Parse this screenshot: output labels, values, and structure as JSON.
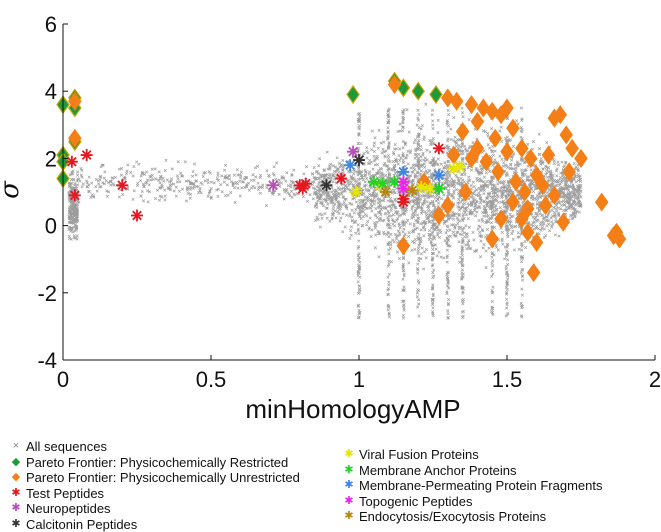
{
  "chart_data": {
    "type": "scatter",
    "title": "",
    "xlabel": "minHomologyAMP",
    "ylabel": "σ",
    "xlim": [
      0,
      2
    ],
    "ylim": [
      -4,
      6
    ],
    "xticks": [
      "0",
      "0.5",
      "1",
      "1.5",
      "2"
    ],
    "yticks": [
      "-4",
      "-2",
      "0",
      "2",
      "4",
      "6"
    ],
    "grid": false,
    "legend_placement": "bottom",
    "background_cloud": {
      "name": "All sequences",
      "color": "#8c8c8c",
      "marker": "x",
      "description_ranges": [
        {
          "x": [
            0.0,
            0.05
          ],
          "y": [
            -1.0,
            3.5
          ]
        },
        {
          "x": [
            0.05,
            0.9
          ],
          "y": [
            0.3,
            2.2
          ]
        },
        {
          "x": [
            0.85,
            1.75
          ],
          "y": [
            -3.8,
            4.3
          ]
        }
      ]
    },
    "series": [
      {
        "name": "Pareto Frontier: Physicochemically Restricted",
        "color": "#1f9a3a",
        "marker": "diamond",
        "points": [
          [
            0.0,
            3.6
          ],
          [
            0.0,
            2.1
          ],
          [
            0.0,
            1.9
          ],
          [
            0.0,
            1.4
          ],
          [
            0.04,
            3.8
          ],
          [
            0.04,
            3.5
          ],
          [
            0.04,
            2.5
          ],
          [
            0.98,
            3.9
          ],
          [
            1.12,
            4.3
          ],
          [
            1.15,
            4.1
          ],
          [
            1.2,
            4.0
          ],
          [
            1.26,
            3.9
          ]
        ]
      },
      {
        "name": "Pareto Frontier: Physicochemically Unrestricted",
        "color": "#f57f17",
        "marker": "diamond",
        "points": [
          [
            0.04,
            3.7
          ],
          [
            0.04,
            2.6
          ],
          [
            1.12,
            4.2
          ],
          [
            1.3,
            3.8
          ],
          [
            1.33,
            3.7
          ],
          [
            1.38,
            3.6
          ],
          [
            1.42,
            3.5
          ],
          [
            1.45,
            3.4
          ],
          [
            1.48,
            3.3
          ],
          [
            1.5,
            3.5
          ],
          [
            1.4,
            3.1
          ],
          [
            1.35,
            2.8
          ],
          [
            1.52,
            2.9
          ],
          [
            1.46,
            2.6
          ],
          [
            1.4,
            2.3
          ],
          [
            1.32,
            2.1
          ],
          [
            1.38,
            2.0
          ],
          [
            1.43,
            1.9
          ],
          [
            1.5,
            2.2
          ],
          [
            1.55,
            2.3
          ],
          [
            1.58,
            2.0
          ],
          [
            1.47,
            1.6
          ],
          [
            1.53,
            1.3
          ],
          [
            1.56,
            1.0
          ],
          [
            1.6,
            1.5
          ],
          [
            1.62,
            1.2
          ],
          [
            1.64,
            2.1
          ],
          [
            1.66,
            3.2
          ],
          [
            1.68,
            3.3
          ],
          [
            1.7,
            2.7
          ],
          [
            1.72,
            2.3
          ],
          [
            1.57,
            0.5
          ],
          [
            1.52,
            0.7
          ],
          [
            1.48,
            0.2
          ],
          [
            1.45,
            -0.4
          ],
          [
            1.57,
            -0.2
          ],
          [
            1.55,
            0.2
          ],
          [
            1.6,
            -0.5
          ],
          [
            1.59,
            -1.4
          ],
          [
            1.63,
            0.6
          ],
          [
            1.66,
            0.9
          ],
          [
            1.69,
            0.1
          ],
          [
            1.71,
            1.6
          ],
          [
            1.75,
            2.0
          ],
          [
            1.82,
            0.7
          ],
          [
            1.86,
            -0.3
          ],
          [
            1.87,
            -0.2
          ],
          [
            1.88,
            -0.4
          ],
          [
            1.15,
            -0.6
          ],
          [
            1.27,
            0.3
          ],
          [
            1.3,
            0.6
          ],
          [
            1.22,
            1.3
          ],
          [
            1.36,
            1.0
          ]
        ]
      },
      {
        "name": "Test Peptides",
        "color": "#e8171f",
        "marker": "asterisk",
        "points": [
          [
            0.03,
            1.9
          ],
          [
            0.04,
            0.9
          ],
          [
            0.08,
            2.1
          ],
          [
            0.2,
            1.2
          ],
          [
            0.25,
            0.3
          ],
          [
            0.8,
            1.2
          ],
          [
            0.81,
            1.1
          ],
          [
            0.82,
            1.25
          ],
          [
            0.94,
            1.4
          ],
          [
            1.15,
            0.8
          ],
          [
            1.15,
            0.7
          ],
          [
            1.27,
            2.3
          ]
        ]
      },
      {
        "name": "Neuropeptides",
        "color": "#b84fb8",
        "marker": "asterisk",
        "points": [
          [
            0.71,
            1.2
          ],
          [
            0.98,
            2.2
          ]
        ]
      },
      {
        "name": "Calcitonin Peptides",
        "color": "#333333",
        "marker": "asterisk",
        "points": [
          [
            0.89,
            1.2
          ],
          [
            1.0,
            1.95
          ],
          [
            1.27,
            1.1
          ]
        ]
      },
      {
        "name": "Viral Fusion Proteins",
        "color": "#e6e600",
        "marker": "asterisk",
        "points": [
          [
            0.99,
            1.0
          ],
          [
            1.07,
            1.2
          ],
          [
            1.21,
            1.15
          ],
          [
            1.24,
            1.1
          ],
          [
            1.32,
            1.7
          ],
          [
            1.34,
            1.75
          ]
        ]
      },
      {
        "name": "Membrane Anchor Proteins",
        "color": "#22d422",
        "marker": "asterisk",
        "points": [
          [
            1.05,
            1.3
          ],
          [
            1.08,
            1.25
          ],
          [
            1.12,
            1.3
          ],
          [
            1.27,
            1.1
          ]
        ]
      },
      {
        "name": "Membrane-Permeating Protein Fragments",
        "color": "#3c86e6",
        "marker": "asterisk",
        "points": [
          [
            0.97,
            1.8
          ],
          [
            1.15,
            1.6
          ],
          [
            1.27,
            1.5
          ]
        ]
      },
      {
        "name": "Topogenic Peptides",
        "color": "#ee22ee",
        "marker": "asterisk",
        "points": [
          [
            1.15,
            1.3
          ],
          [
            1.15,
            1.1
          ]
        ]
      },
      {
        "name": "Endocytosis/Exocytosis Proteins",
        "color": "#b8860b",
        "marker": "asterisk",
        "points": [
          [
            1.09,
            1.0
          ],
          [
            1.18,
            1.05
          ]
        ]
      }
    ]
  },
  "legend": {
    "left": [
      {
        "label": "All sequences",
        "color": "#8c8c8c",
        "symbol": "×"
      },
      {
        "label": "Pareto Frontier: Physicochemically Restricted",
        "color": "#1f9a3a",
        "symbol": "◆"
      },
      {
        "label": "Pareto Frontier: Physicochemically Unrestricted",
        "color": "#f57f17",
        "symbol": "◆"
      },
      {
        "label": "Test Peptides",
        "color": "#e8171f",
        "symbol": "✱"
      },
      {
        "label": "Neuropeptides",
        "color": "#b84fb8",
        "symbol": "✱"
      },
      {
        "label": "Calcitonin Peptides",
        "color": "#333333",
        "symbol": "✱"
      }
    ],
    "right": [
      {
        "label": "Viral Fusion Proteins",
        "color": "#e6e600",
        "symbol": "✱"
      },
      {
        "label": "Membrane Anchor Proteins",
        "color": "#22d422",
        "symbol": "✱"
      },
      {
        "label": "Membrane-Permeating Protein Fragments",
        "color": "#3c86e6",
        "symbol": "✱"
      },
      {
        "label": "Topogenic Peptides",
        "color": "#ee22ee",
        "symbol": "✱"
      },
      {
        "label": "Endocytosis/Exocytosis Proteins",
        "color": "#b8860b",
        "symbol": "✱"
      }
    ]
  }
}
